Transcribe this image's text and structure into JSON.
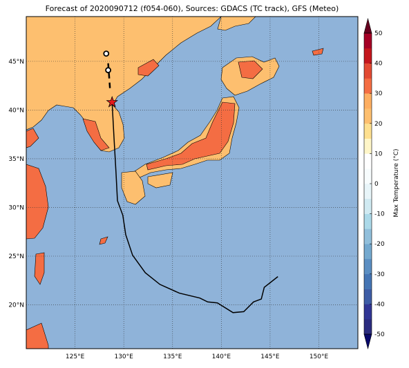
{
  "title": "Forecast of 2020090712 (f054-060), Sources: GDACS (TC track), GFS (Meteo)",
  "map": {
    "lonlim": [
      120,
      154
    ],
    "latlim": [
      15.5,
      49.6
    ],
    "lonticks": [
      {
        "value": 125,
        "label": "125°E"
      },
      {
        "value": 130,
        "label": "130°E"
      },
      {
        "value": 135,
        "label": "135°E"
      },
      {
        "value": 140,
        "label": "140°E"
      },
      {
        "value": 145,
        "label": "145°E"
      },
      {
        "value": 150,
        "label": "150°E"
      }
    ],
    "latticks": [
      {
        "value": 20,
        "label": "20°N"
      },
      {
        "value": 25,
        "label": "25°N"
      },
      {
        "value": 30,
        "label": "30°N"
      },
      {
        "value": 35,
        "label": "35°N"
      },
      {
        "value": 40,
        "label": "40°N"
      },
      {
        "value": 45,
        "label": "45°N"
      }
    ],
    "grid": true,
    "ocean_color": "#8fb3d9"
  },
  "track": {
    "color": "#000000",
    "lon": [
      128.8,
      129.0,
      129.2,
      129.35,
      129.9,
      130.2,
      130.9,
      132.2,
      133.7,
      135.7,
      137.8,
      138.6,
      139.6,
      141.2,
      142.3,
      143.3,
      144.1,
      144.4,
      145.8
    ],
    "lat": [
      40.8,
      37.1,
      33.6,
      30.7,
      29.2,
      27.2,
      25.1,
      23.3,
      22.1,
      21.2,
      20.7,
      20.3,
      20.2,
      19.2,
      19.3,
      20.3,
      20.6,
      21.8,
      22.9
    ]
  },
  "forecast_track": {
    "lon": [
      128.4,
      128.6
    ],
    "lat": [
      44.8,
      42.0
    ]
  },
  "current_position": {
    "lon": 128.8,
    "lat": 40.8,
    "color": "#e31a1c"
  },
  "forecast_positions": {
    "lon": [
      128.2,
      128.4
    ],
    "lat": [
      45.8,
      44.1
    ]
  },
  "colorbar": {
    "label": "Max Temperature (°C)",
    "levels": [
      -50,
      -45,
      -40,
      -35,
      -30,
      -25,
      -20,
      -15,
      -10,
      -5,
      0,
      5,
      10,
      15,
      20,
      25,
      30,
      35,
      40,
      45,
      50
    ],
    "colors": [
      "#2b2c7f",
      "#313695",
      "#3e5da6",
      "#4575b4",
      "#5b8ec2",
      "#74a9cf",
      "#91bfdb",
      "#abd9e9",
      "#d0eaf2",
      "#e8f5f9",
      "#f7fcfd",
      "#ffffff",
      "#fff6c8",
      "#fee090",
      "#fdbf6f",
      "#fdae61",
      "#f46d43",
      "#e34a33",
      "#c4161d",
      "#a50026"
    ],
    "under": "#08086b",
    "over": "#67001f",
    "ticks": [
      -50,
      -40,
      -30,
      -20,
      -10,
      0,
      10,
      20,
      30,
      40,
      50
    ]
  }
}
